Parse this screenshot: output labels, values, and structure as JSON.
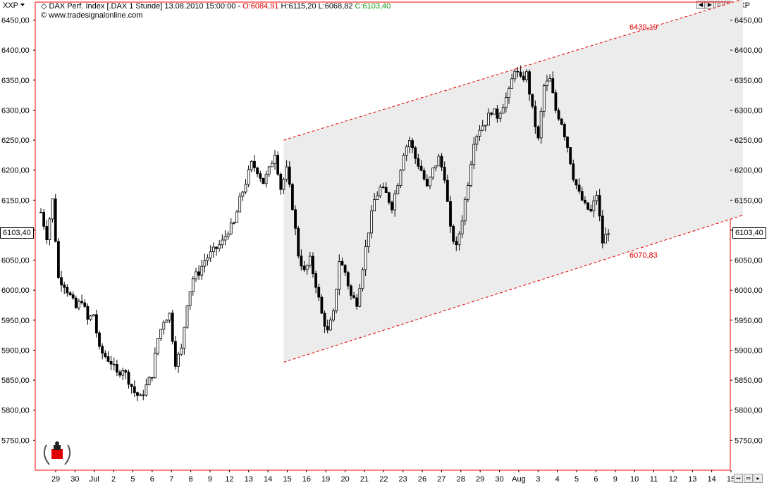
{
  "header": {
    "symbol_left": "XXP",
    "symbol_right": "XXP",
    "instrument": "DAX Perf. Index [.DAX  1 Stunde] 13.08.2010 15:00:00 - ",
    "open": "O:6084,91",
    "high_low": " H:6115,20 L:6068,82 ",
    "close": "C:6103,40",
    "website": "© www.tradesignalonline.com"
  },
  "current_price_label": "6103,40",
  "colors": {
    "axis_red": "#ff0000",
    "channel_red": "#e00000",
    "channel_fill": "#ececec",
    "candle": "#000000"
  },
  "chart_data": {
    "type": "candlestick",
    "y_axis": {
      "min": 5700,
      "max": 6480,
      "ticks": [
        5750,
        5800,
        5850,
        5900,
        5950,
        6000,
        6050,
        6100,
        6150,
        6200,
        6250,
        6300,
        6350,
        6400,
        6450
      ],
      "tick_labels": [
        "5750,00",
        "5800,00",
        "5850,00",
        "5900,00",
        "5950,00",
        "6000,00",
        "6050,00",
        "6100,00",
        "6150,00",
        "6200,00",
        "6250,00",
        "6300,00",
        "6350,00",
        "6400,00",
        "6450,00"
      ],
      "both_sides": true
    },
    "x_axis_labels": [
      "29",
      "30",
      "Jul",
      "2",
      "5",
      "6",
      "7",
      "8",
      "9",
      "12",
      "13",
      "14",
      "15",
      "16",
      "19",
      "20",
      "21",
      "22",
      "23",
      "26",
      "27",
      "28",
      "29",
      "30",
      "Aug",
      "3",
      "4",
      "5",
      "6",
      "9",
      "10",
      "11",
      "12",
      "13",
      "14",
      "15"
    ],
    "close_path": [
      [
        0,
        6130
      ],
      [
        2,
        6090
      ],
      [
        4,
        6150
      ],
      [
        6,
        6020
      ],
      [
        8,
        6010
      ],
      [
        10,
        5990
      ],
      [
        12,
        5970
      ],
      [
        14,
        5985
      ],
      [
        16,
        5950
      ],
      [
        18,
        5960
      ],
      [
        20,
        5900
      ],
      [
        22,
        5890
      ],
      [
        24,
        5880
      ],
      [
        26,
        5860
      ],
      [
        28,
        5870
      ],
      [
        30,
        5850
      ],
      [
        32,
        5830
      ],
      [
        34,
        5820
      ],
      [
        36,
        5840
      ],
      [
        38,
        5860
      ],
      [
        40,
        5920
      ],
      [
        42,
        5950
      ],
      [
        44,
        5960
      ],
      [
        46,
        5880
      ],
      [
        48,
        5900
      ],
      [
        50,
        5980
      ],
      [
        52,
        6020
      ],
      [
        54,
        6030
      ],
      [
        56,
        6050
      ],
      [
        58,
        6060
      ],
      [
        60,
        6070
      ],
      [
        62,
        6080
      ],
      [
        64,
        6100
      ],
      [
        66,
        6110
      ],
      [
        68,
        6150
      ],
      [
        70,
        6180
      ],
      [
        72,
        6210
      ],
      [
        74,
        6200
      ],
      [
        76,
        6180
      ],
      [
        78,
        6200
      ],
      [
        80,
        6230
      ],
      [
        82,
        6170
      ],
      [
        84,
        6200
      ],
      [
        86,
        6140
      ],
      [
        88,
        6060
      ],
      [
        90,
        6030
      ],
      [
        92,
        6050
      ],
      [
        94,
        6010
      ],
      [
        96,
        5960
      ],
      [
        98,
        5930
      ],
      [
        100,
        5960
      ],
      [
        102,
        6050
      ],
      [
        104,
        6030
      ],
      [
        106,
        5990
      ],
      [
        108,
        5980
      ],
      [
        110,
        6040
      ],
      [
        112,
        6100
      ],
      [
        114,
        6150
      ],
      [
        116,
        6170
      ],
      [
        118,
        6160
      ],
      [
        120,
        6140
      ],
      [
        122,
        6180
      ],
      [
        124,
        6230
      ],
      [
        126,
        6250
      ],
      [
        128,
        6220
      ],
      [
        130,
        6200
      ],
      [
        132,
        6170
      ],
      [
        134,
        6200
      ],
      [
        136,
        6220
      ],
      [
        138,
        6190
      ],
      [
        140,
        6100
      ],
      [
        142,
        6070
      ],
      [
        144,
        6120
      ],
      [
        146,
        6180
      ],
      [
        148,
        6250
      ],
      [
        150,
        6270
      ],
      [
        152,
        6280
      ],
      [
        154,
        6300
      ],
      [
        156,
        6290
      ],
      [
        158,
        6310
      ],
      [
        160,
        6330
      ],
      [
        162,
        6370
      ],
      [
        164,
        6350
      ],
      [
        166,
        6360
      ],
      [
        168,
        6300
      ],
      [
        170,
        6250
      ],
      [
        172,
        6340
      ],
      [
        174,
        6350
      ],
      [
        176,
        6300
      ],
      [
        178,
        6280
      ],
      [
        180,
        6240
      ],
      [
        182,
        6190
      ],
      [
        184,
        6160
      ],
      [
        186,
        6140
      ],
      [
        188,
        6130
      ],
      [
        190,
        6160
      ],
      [
        192,
        6080
      ],
      [
        194,
        6100
      ]
    ],
    "channel": {
      "upper_label": "6439,19",
      "lower_label": "6070,83",
      "upper_line": {
        "x1_idx": 83,
        "y1": 6250,
        "x2_idx": 240,
        "y2": 6485
      },
      "lower_line": {
        "x1_idx": 83,
        "y1": 5880,
        "x2_idx": 240,
        "y2": 6125
      },
      "fill_start_idx": 83,
      "upper_label_value": 6439.19,
      "lower_label_value": 6070.83
    }
  }
}
